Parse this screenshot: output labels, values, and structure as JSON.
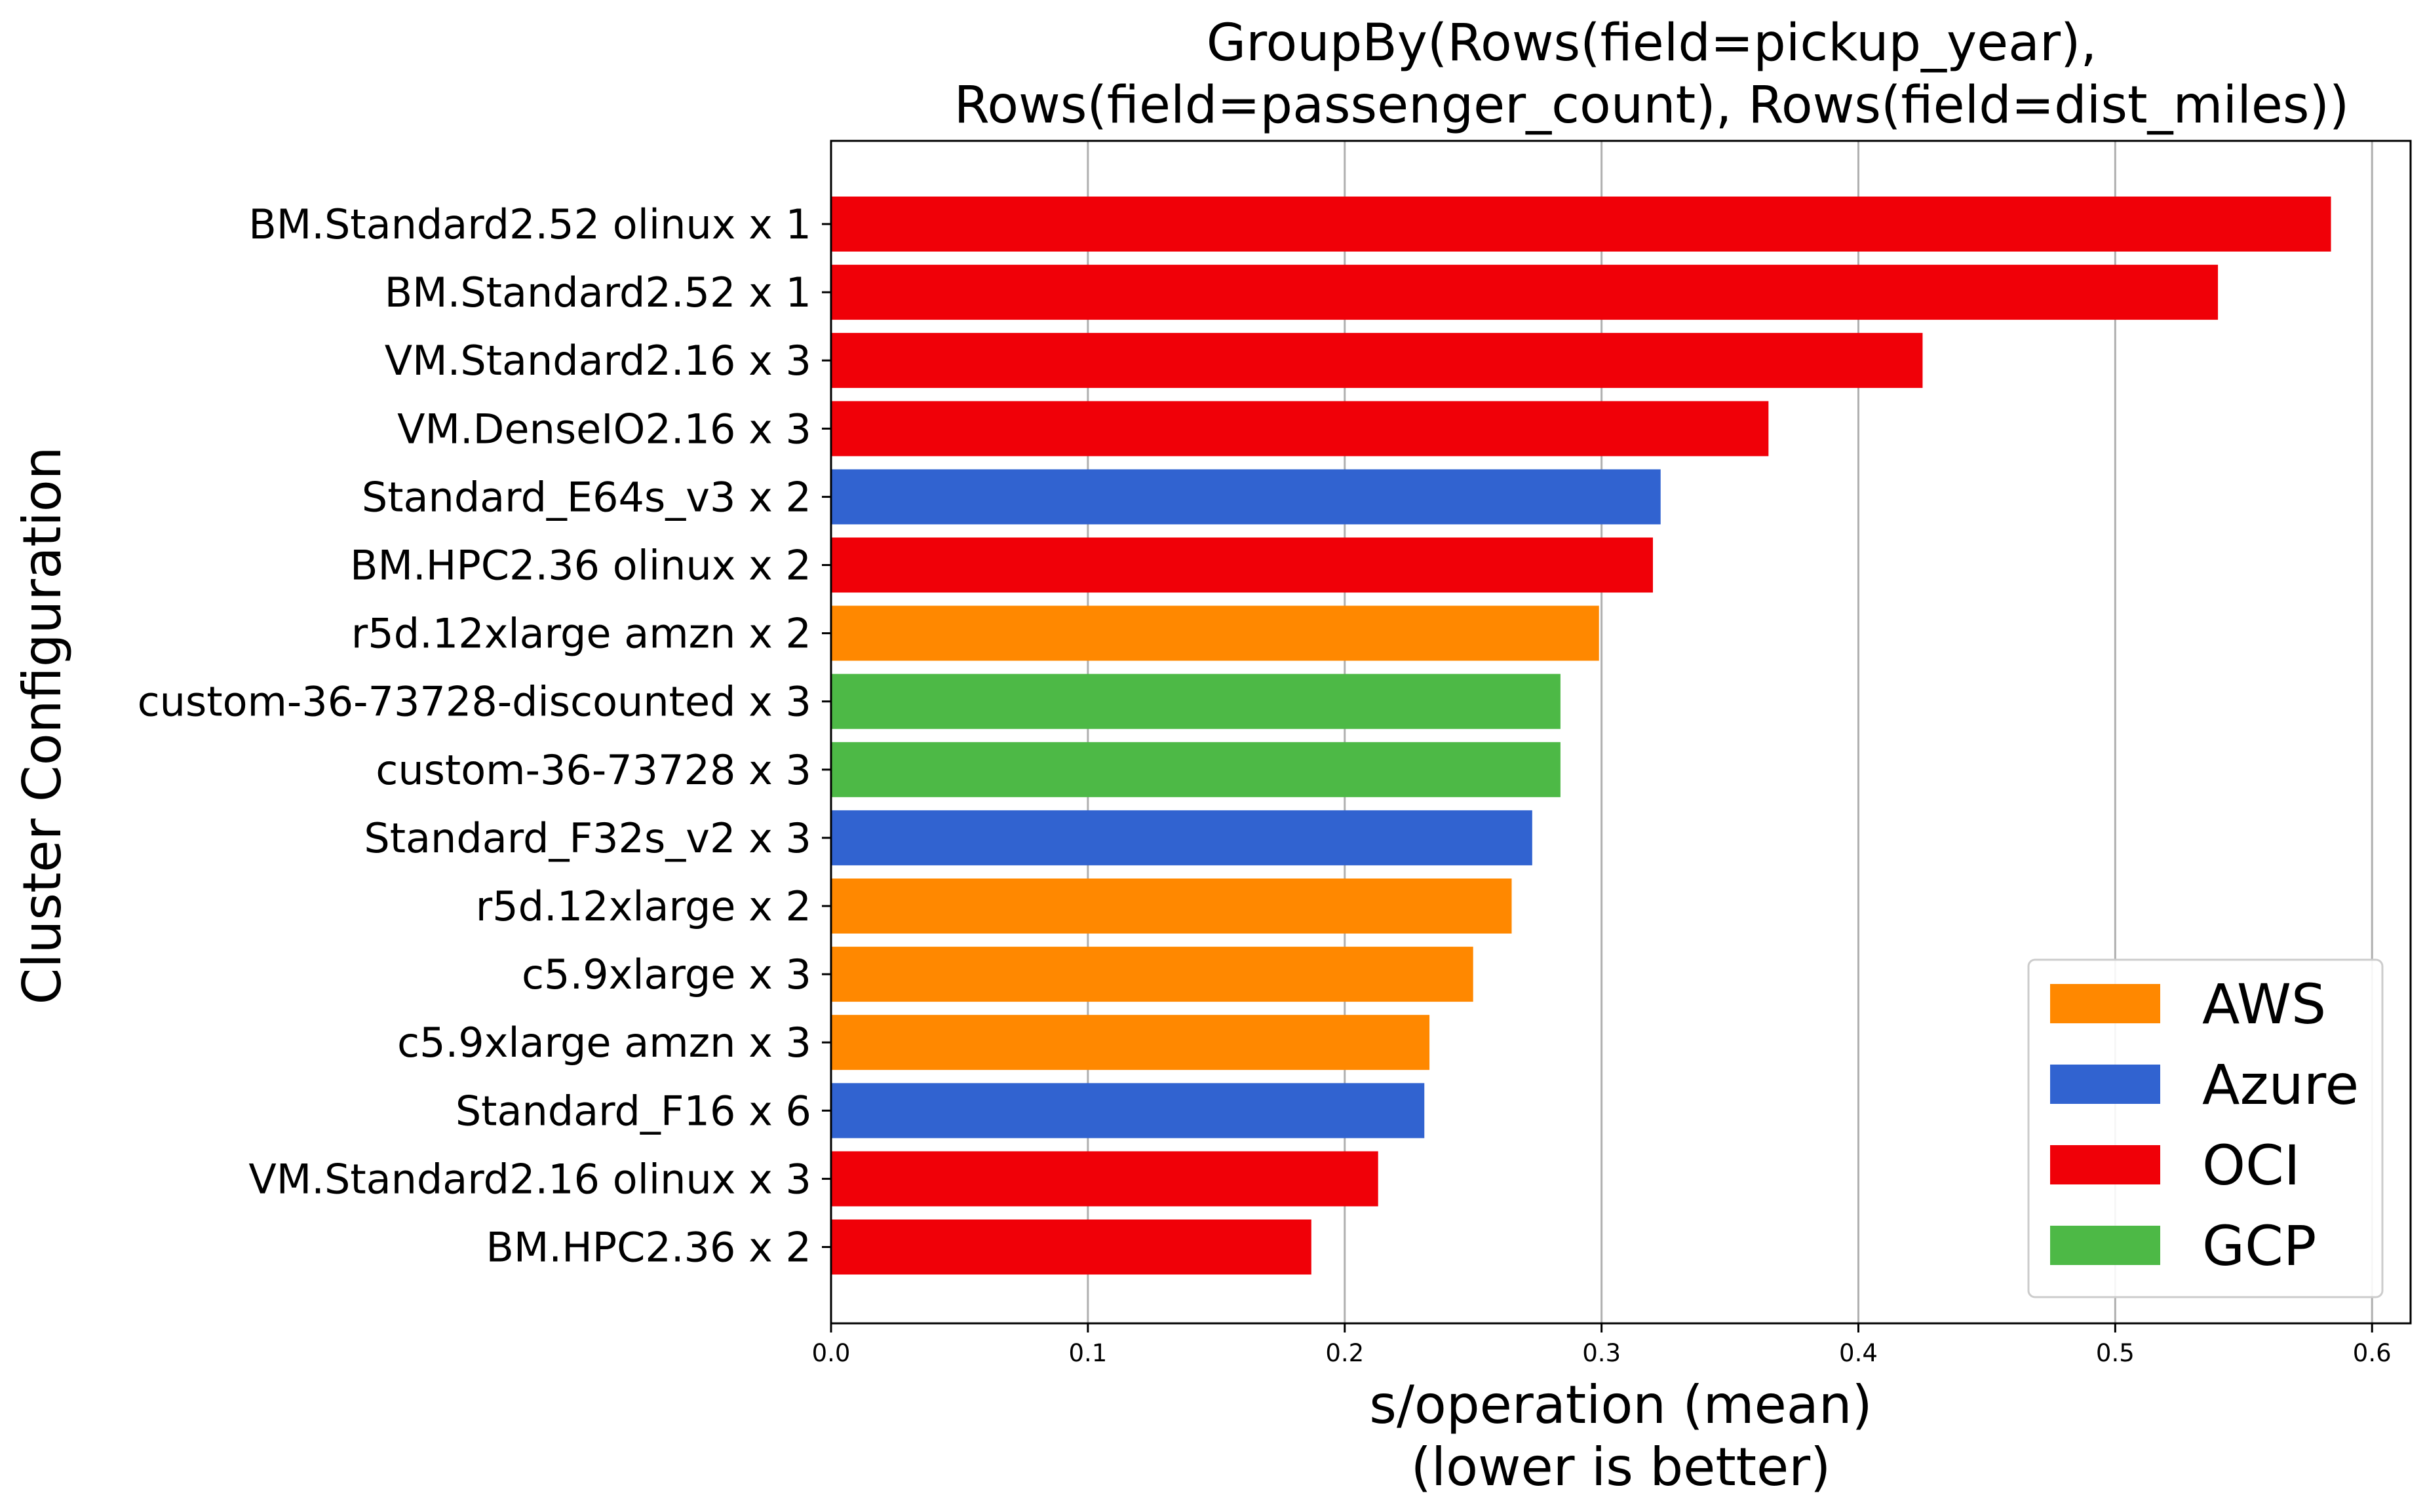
{
  "chart_data": {
    "type": "bar",
    "orientation": "horizontal",
    "title_lines": [
      "GroupBy(Rows(field=pickup_year),",
      "Rows(field=passenger_count), Rows(field=dist_miles))"
    ],
    "xlabel_lines": [
      "s/operation (mean)",
      "(lower is better)"
    ],
    "ylabel": "Cluster Configuration",
    "xlim": [
      0,
      0.615
    ],
    "xticks": [
      "0.0",
      "0.1",
      "0.2",
      "0.3",
      "0.4",
      "0.5",
      "0.6"
    ],
    "grid": "vertical lines",
    "legend_position": "bottom-right",
    "colors": {
      "AWS": "#ff8800",
      "Azure": "#3163d0",
      "OCI": "#f00008",
      "GCP": "#4db946"
    },
    "legend": [
      {
        "label": "AWS",
        "color": "#ff8800"
      },
      {
        "label": "Azure",
        "color": "#3163d0"
      },
      {
        "label": "OCI",
        "color": "#f00008"
      },
      {
        "label": "GCP",
        "color": "#4db946"
      }
    ],
    "bars": [
      {
        "label": "BM.Standard2.52 olinux x 1",
        "value": 0.584,
        "provider": "OCI"
      },
      {
        "label": "BM.Standard2.52 x 1",
        "value": 0.54,
        "provider": "OCI"
      },
      {
        "label": "VM.Standard2.16 x 3",
        "value": 0.425,
        "provider": "OCI"
      },
      {
        "label": "VM.DenseIO2.16 x 3",
        "value": 0.365,
        "provider": "OCI"
      },
      {
        "label": "Standard_E64s_v3 x 2",
        "value": 0.323,
        "provider": "Azure"
      },
      {
        "label": "BM.HPC2.36 olinux x 2",
        "value": 0.32,
        "provider": "OCI"
      },
      {
        "label": "r5d.12xlarge amzn x 2",
        "value": 0.299,
        "provider": "AWS"
      },
      {
        "label": "custom-36-73728-discounted x 3",
        "value": 0.284,
        "provider": "GCP"
      },
      {
        "label": "custom-36-73728 x 3",
        "value": 0.284,
        "provider": "GCP"
      },
      {
        "label": "Standard_F32s_v2 x 3",
        "value": 0.273,
        "provider": "Azure"
      },
      {
        "label": "r5d.12xlarge x 2",
        "value": 0.265,
        "provider": "AWS"
      },
      {
        "label": "c5.9xlarge x 3",
        "value": 0.25,
        "provider": "AWS"
      },
      {
        "label": "c5.9xlarge amzn x 3",
        "value": 0.233,
        "provider": "AWS"
      },
      {
        "label": "Standard_F16 x 6",
        "value": 0.231,
        "provider": "Azure"
      },
      {
        "label": "VM.Standard2.16 olinux x 3",
        "value": 0.213,
        "provider": "OCI"
      },
      {
        "label": "BM.HPC2.36 x 2",
        "value": 0.187,
        "provider": "OCI"
      }
    ]
  }
}
